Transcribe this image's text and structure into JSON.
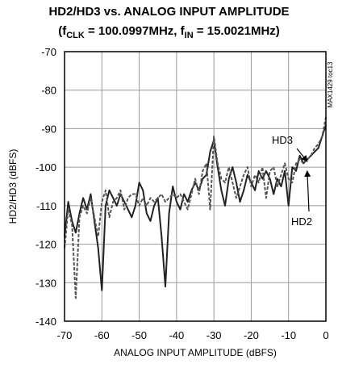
{
  "title": "HD2/HD3 vs. ANALOG INPUT AMPLITUDE",
  "subtitle": {
    "open": "(f",
    "fclk_sub": "CLK",
    "fclk_value": " = 100.0997MHz, f",
    "fin_sub": "IN",
    "fin_value": " = 15.0021MHz)"
  },
  "chart_code": "MAX1429 toc13",
  "chart_data": {
    "type": "line",
    "title": "HD2/HD3 vs. ANALOG INPUT AMPLITUDE",
    "xlabel": "ANALOG INPUT AMPLITUDE (dBFS)",
    "ylabel": "HD2/HD3 (dBFS)",
    "xlim": [
      -70,
      0
    ],
    "ylim": [
      -140,
      -70
    ],
    "xticks": [
      -70,
      -60,
      -50,
      -40,
      -30,
      -20,
      -10,
      0
    ],
    "yticks": [
      -70,
      -80,
      -90,
      -100,
      -110,
      -120,
      -130,
      -140
    ],
    "grid": true,
    "series": [
      {
        "name": "HD3",
        "style": "solid",
        "x": [
          -70,
          -69,
          -68,
          -67,
          -66,
          -65,
          -64,
          -63,
          -62,
          -61,
          -60,
          -59,
          -58,
          -57,
          -56,
          -55,
          -54,
          -53,
          -52,
          -51,
          -50,
          -49,
          -48,
          -47,
          -46,
          -45,
          -44,
          -43,
          -42,
          -41,
          -40,
          -39,
          -38,
          -37,
          -36,
          -35,
          -34,
          -33,
          -32,
          -31,
          -30,
          -29,
          -28,
          -27,
          -26,
          -25,
          -24,
          -23,
          -22,
          -21,
          -20,
          -19,
          -18,
          -17,
          -16,
          -15,
          -14,
          -13,
          -12,
          -11,
          -10,
          -9,
          -8,
          -7,
          -6,
          -5,
          -4,
          -3,
          -2,
          -1,
          0
        ],
        "y": [
          -118,
          -109,
          -114,
          -117,
          -112,
          -108,
          -111,
          -107,
          -114,
          -121,
          -132,
          -110,
          -106,
          -108,
          -110,
          -107,
          -109,
          -111,
          -113,
          -110,
          -104,
          -106,
          -112,
          -114,
          -110,
          -108,
          -118,
          -131,
          -112,
          -105,
          -109,
          -111,
          -107,
          -109,
          -106,
          -104,
          -106,
          -103,
          -102,
          -96,
          -93,
          -100,
          -106,
          -110,
          -103,
          -100,
          -104,
          -109,
          -106,
          -102,
          -104,
          -106,
          -101,
          -103,
          -101,
          -103,
          -107,
          -103,
          -105,
          -101,
          -110,
          -100,
          -101,
          -97,
          -99,
          -98,
          -97,
          -96,
          -95,
          -92,
          -89
        ]
      },
      {
        "name": "HD2",
        "style": "dashed",
        "x": [
          -70,
          -69,
          -68,
          -67,
          -66,
          -65,
          -64,
          -63,
          -62,
          -61,
          -60,
          -59,
          -58,
          -57,
          -56,
          -55,
          -54,
          -53,
          -52,
          -51,
          -50,
          -49,
          -48,
          -47,
          -46,
          -45,
          -44,
          -43,
          -42,
          -41,
          -40,
          -39,
          -38,
          -37,
          -36,
          -35,
          -34,
          -33,
          -32,
          -31,
          -30,
          -29,
          -28,
          -27,
          -26,
          -25,
          -24,
          -23,
          -22,
          -21,
          -20,
          -19,
          -18,
          -17,
          -16,
          -15,
          -14,
          -13,
          -12,
          -11,
          -10,
          -9,
          -8,
          -7,
          -6,
          -5,
          -4,
          -3,
          -2,
          -1,
          0
        ],
        "y": [
          -121,
          -111,
          -115,
          -134,
          -113,
          -110,
          -112,
          -108,
          -113,
          -118,
          -109,
          -106,
          -113,
          -109,
          -108,
          -106,
          -111,
          -108,
          -107,
          -107,
          -110,
          -108,
          -110,
          -108,
          -109,
          -108,
          -107,
          -109,
          -108,
          -107,
          -108,
          -107,
          -109,
          -111,
          -107,
          -103,
          -107,
          -101,
          -99,
          -111,
          -92,
          -99,
          -103,
          -104,
          -100,
          -104,
          -108,
          -105,
          -102,
          -100,
          -105,
          -102,
          -104,
          -100,
          -108,
          -101,
          -100,
          -105,
          -102,
          -99,
          -103,
          -104,
          -99,
          -98,
          -99,
          -98,
          -97,
          -95,
          -94,
          -92,
          -87
        ]
      }
    ],
    "annotations": [
      {
        "text": "HD3",
        "points_to": [
          -5,
          -98.5
        ]
      },
      {
        "text": "HD2",
        "points_to": [
          -5,
          -101
        ]
      }
    ]
  }
}
